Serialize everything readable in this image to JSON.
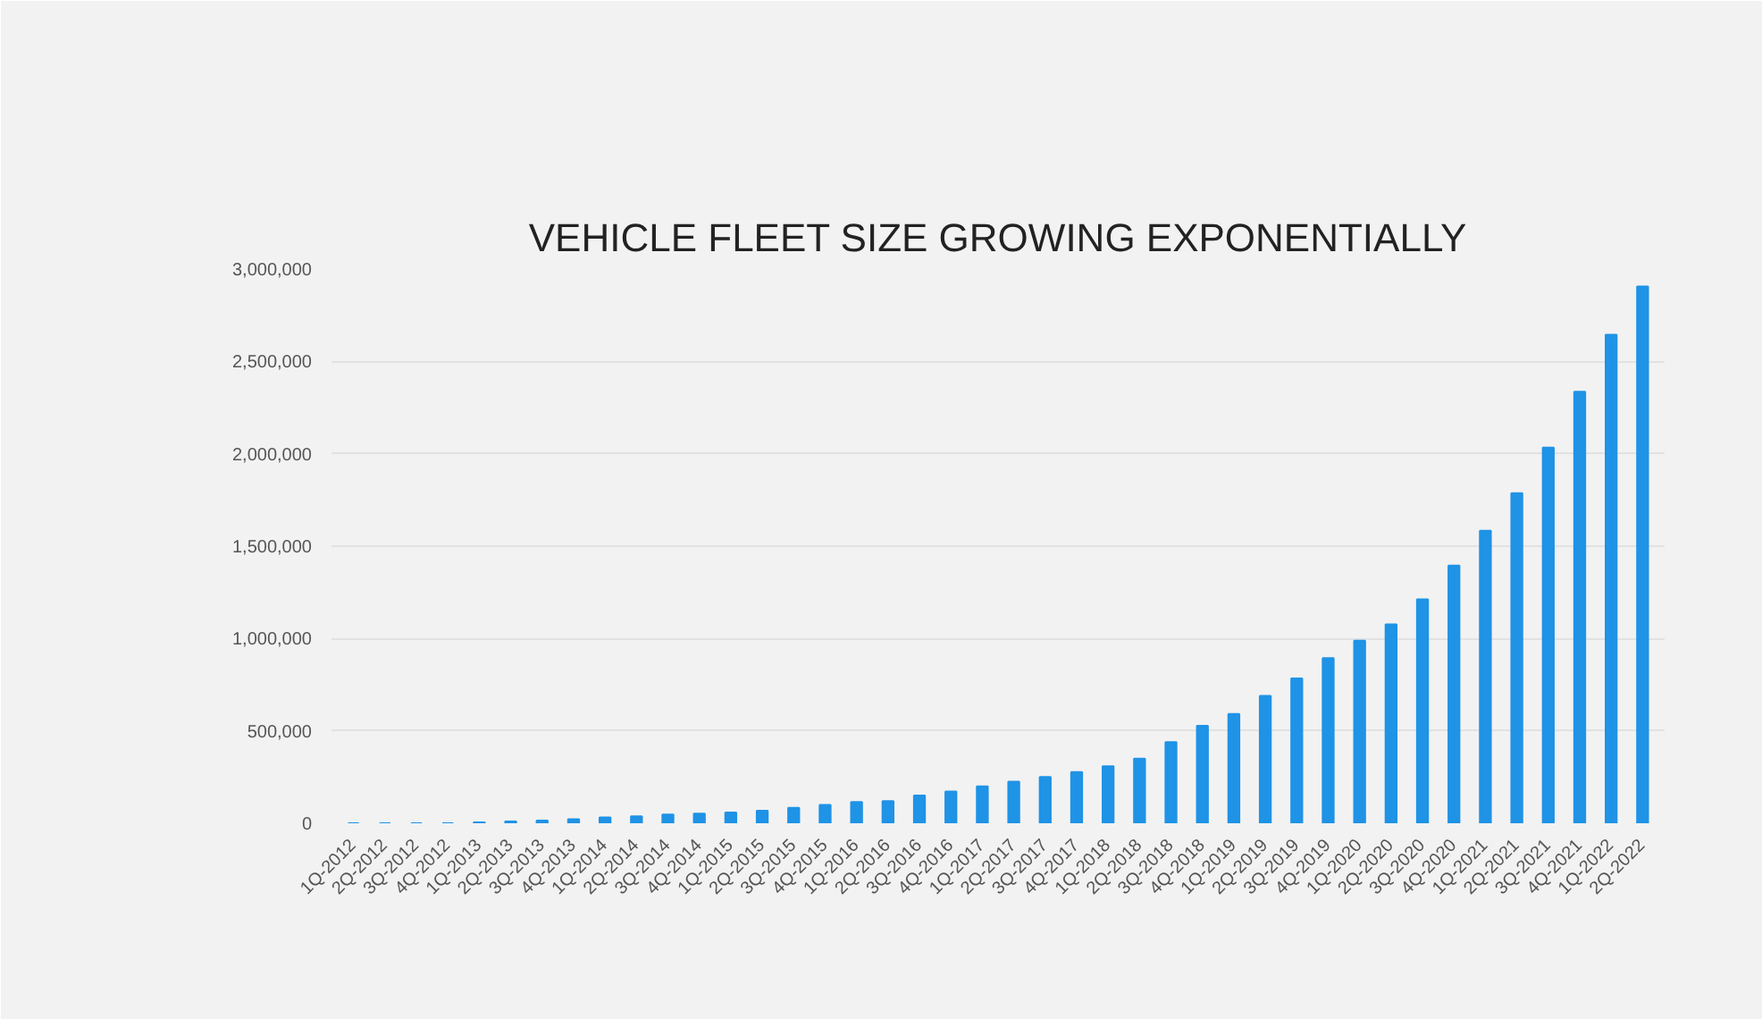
{
  "chart_data": {
    "type": "bar",
    "title": "VEHICLE FLEET SIZE GROWING EXPONENTIALLY",
    "categories": [
      "1Q-2012",
      "2Q-2012",
      "3Q-2012",
      "4Q-2012",
      "1Q-2013",
      "2Q-2013",
      "3Q-2013",
      "4Q-2013",
      "1Q-2014",
      "2Q-2014",
      "3Q-2014",
      "4Q-2014",
      "1Q-2015",
      "2Q-2015",
      "3Q-2015",
      "4Q-2015",
      "1Q-2016",
      "2Q-2016",
      "3Q-2016",
      "4Q-2016",
      "1Q-2017",
      "2Q-2017",
      "3Q-2017",
      "4Q-2017",
      "1Q-2018",
      "2Q-2018",
      "3Q-2018",
      "4Q-2018",
      "1Q-2019",
      "2Q-2019",
      "3Q-2019",
      "4Q-2019",
      "1Q-2020",
      "2Q-2020",
      "3Q-2020",
      "4Q-2020",
      "1Q-2021",
      "2Q-2021",
      "3Q-2021",
      "4Q-2021",
      "1Q-2022",
      "2Q-2022"
    ],
    "values": [
      0,
      0,
      0,
      0,
      5000,
      10000,
      15000,
      22000,
      31000,
      37000,
      47000,
      52000,
      58000,
      68000,
      84000,
      99000,
      115000,
      120000,
      150000,
      172000,
      199000,
      225000,
      251000,
      277000,
      308000,
      350000,
      439000,
      528000,
      591000,
      690000,
      784000,
      894000,
      988000,
      1077000,
      1212000,
      1395000,
      1583000,
      1787000,
      2033000,
      2336000,
      2644000,
      2906000
    ],
    "color": "#1f93e6",
    "ylim": [
      0,
      3000000
    ],
    "yticks": [
      {
        "value": 0,
        "label": "0"
      },
      {
        "value": 500000,
        "label": "500,000"
      },
      {
        "value": 1000000,
        "label": "1,000,000"
      },
      {
        "value": 1500000,
        "label": "1,500,000"
      },
      {
        "value": 2000000,
        "label": "2,000,000"
      },
      {
        "value": 2500000,
        "label": "2,500,000"
      },
      {
        "value": 3000000,
        "label": "3,000,000"
      }
    ],
    "grid": "y"
  }
}
